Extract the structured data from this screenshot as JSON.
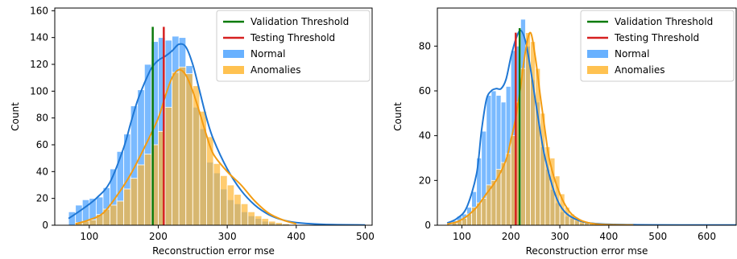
{
  "colors": {
    "normal_bar": "#4da3ff",
    "normal_line": "#1f77d4",
    "anomaly_bar": "#ffb733",
    "anomaly_line": "#f39c12",
    "validation": "#0a7a0a",
    "testing": "#d62020"
  },
  "chart_data": [
    {
      "type": "bar",
      "subtype": "overlapping-histogram-with-kde",
      "xlabel": "Reconstruction  error  mse",
      "ylabel": "Count",
      "xlim": [
        50,
        510
      ],
      "ylim": [
        0,
        162
      ],
      "xticks": [
        100,
        200,
        300,
        400,
        500
      ],
      "yticks": [
        0,
        20,
        40,
        60,
        80,
        100,
        120,
        140,
        160
      ],
      "bin_width": 10,
      "legend_position": "top-right",
      "legend": [
        "Validation Threshold",
        "Testing Threshold",
        "Normal",
        "Anomalies"
      ],
      "series": [
        {
          "name": "Normal",
          "bin_start": [
            70,
            80,
            90,
            100,
            110,
            120,
            130,
            140,
            150,
            160,
            170,
            180,
            190,
            200,
            210,
            220,
            230,
            240,
            250,
            260,
            270,
            280,
            290,
            300,
            310,
            320,
            330,
            340,
            350,
            360,
            370,
            380
          ],
          "values": [
            10,
            15,
            19,
            20,
            21,
            28,
            42,
            55,
            68,
            89,
            101,
            120,
            137,
            140,
            138,
            141,
            140,
            119,
            88,
            72,
            47,
            39,
            27,
            19,
            16,
            10,
            7,
            5,
            3,
            2,
            1,
            1
          ]
        },
        {
          "name": "Anomalies",
          "bin_start": [
            80,
            90,
            100,
            110,
            120,
            130,
            140,
            150,
            160,
            170,
            180,
            190,
            200,
            210,
            220,
            230,
            240,
            250,
            260,
            270,
            280,
            290,
            300,
            310,
            320,
            330,
            340,
            350,
            360,
            370,
            380
          ],
          "values": [
            2,
            3,
            4,
            8,
            12,
            15,
            18,
            27,
            35,
            45,
            53,
            60,
            70,
            88,
            114,
            118,
            113,
            104,
            85,
            66,
            46,
            37,
            30,
            23,
            16,
            10,
            7,
            5,
            3,
            2,
            1
          ]
        }
      ],
      "kde": [
        {
          "name": "Normal",
          "x": [
            70,
            90,
            110,
            130,
            150,
            160,
            170,
            180,
            190,
            200,
            210,
            220,
            230,
            240,
            250,
            260,
            270,
            280,
            300,
            320,
            340,
            360,
            380,
            400,
            440,
            500
          ],
          "y": [
            5,
            12,
            20,
            32,
            58,
            76,
            93,
            106,
            117,
            123,
            126,
            130,
            135,
            133,
            120,
            100,
            80,
            64,
            42,
            26,
            15,
            8,
            4,
            2,
            0.6,
            0.2
          ]
        },
        {
          "name": "Anomalies",
          "x": [
            80,
            100,
            120,
            140,
            160,
            180,
            200,
            210,
            220,
            230,
            240,
            250,
            260,
            270,
            280,
            300,
            320,
            340,
            360,
            380,
            400
          ],
          "y": [
            1,
            4,
            9,
            22,
            38,
            58,
            80,
            96,
            110,
            116,
            112,
            100,
            84,
            67,
            53,
            40,
            30,
            18,
            9,
            4,
            1
          ]
        }
      ],
      "thresholds": [
        {
          "name": "Validation Threshold",
          "x": 192,
          "y_top": 148
        },
        {
          "name": "Testing Threshold",
          "x": 208,
          "y_top": 148
        }
      ]
    },
    {
      "type": "bar",
      "subtype": "overlapping-histogram-with-kde",
      "xlabel": "Reconstruction  error  mse",
      "ylabel": "Count",
      "xlim": [
        50,
        660
      ],
      "ylim": [
        0,
        97
      ],
      "xticks": [
        100,
        200,
        300,
        400,
        500,
        600
      ],
      "yticks": [
        0,
        20,
        40,
        60,
        80
      ],
      "bin_width": 10,
      "legend_position": "top-right",
      "legend": [
        "Validation Threshold",
        "Testing Threshold",
        "Normal",
        "Anomalies"
      ],
      "series": [
        {
          "name": "Normal",
          "bin_start": [
            80,
            90,
            100,
            110,
            120,
            130,
            140,
            150,
            160,
            170,
            180,
            190,
            200,
            210,
            220,
            230,
            240,
            250,
            260,
            270,
            280,
            290,
            300,
            310,
            320,
            330,
            340,
            350,
            360,
            370
          ],
          "values": [
            2,
            4,
            5,
            8,
            15,
            30,
            42,
            58,
            60,
            58,
            55,
            62,
            78,
            80,
            92,
            80,
            65,
            55,
            35,
            25,
            16,
            10,
            6,
            4,
            3,
            2,
            1,
            1,
            0.5,
            0.5
          ]
        },
        {
          "name": "Anomalies",
          "bin_start": [
            80,
            90,
            100,
            110,
            120,
            130,
            140,
            150,
            160,
            170,
            180,
            190,
            200,
            210,
            220,
            230,
            240,
            250,
            260,
            270,
            280,
            290,
            300,
            310,
            320,
            330,
            340,
            350,
            360,
            370
          ],
          "values": [
            1,
            2,
            3,
            5,
            8,
            10,
            12,
            18,
            20,
            25,
            28,
            32,
            40,
            55,
            70,
            86,
            82,
            70,
            50,
            35,
            30,
            22,
            14,
            8,
            5,
            3,
            2,
            1,
            1,
            0.5
          ]
        }
      ],
      "kde": [
        {
          "name": "Normal",
          "x": [
            70,
            90,
            110,
            130,
            140,
            150,
            160,
            170,
            180,
            190,
            200,
            210,
            220,
            230,
            240,
            250,
            260,
            270,
            290,
            310,
            340,
            380,
            450,
            550,
            660
          ],
          "y": [
            1,
            3,
            8,
            23,
            42,
            56,
            60,
            61,
            61,
            65,
            75,
            83,
            87,
            82,
            70,
            56,
            42,
            30,
            14,
            6,
            2,
            0.6,
            0.2,
            0.1,
            0.1
          ]
        },
        {
          "name": "Anomalies",
          "x": [
            70,
            90,
            110,
            130,
            150,
            170,
            190,
            200,
            210,
            220,
            230,
            240,
            250,
            260,
            270,
            280,
            300,
            320,
            340,
            360,
            380,
            400,
            450
          ],
          "y": [
            0.5,
            1.5,
            4,
            8,
            14,
            20,
            29,
            38,
            48,
            62,
            78,
            86,
            75,
            58,
            42,
            28,
            14,
            6,
            2.5,
            1,
            0.4,
            0.2,
            0.1
          ]
        }
      ],
      "thresholds": [
        {
          "name": "Validation Threshold",
          "x": 218,
          "y_top": 88
        },
        {
          "name": "Testing Threshold",
          "x": 210,
          "y_top": 86
        }
      ]
    }
  ]
}
